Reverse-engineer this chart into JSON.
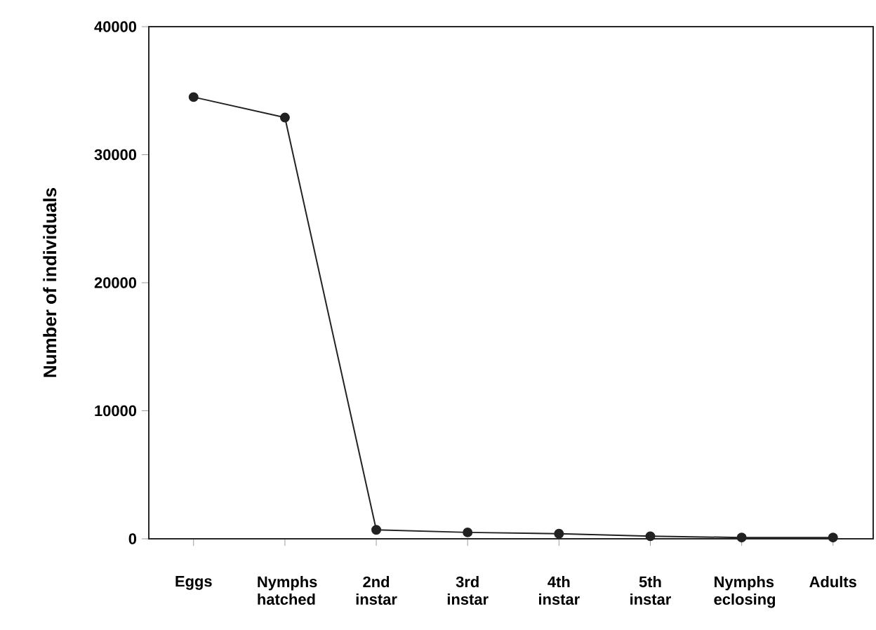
{
  "chart_data": {
    "type": "line",
    "ylabel": "Number of individuals",
    "categories": [
      "Eggs",
      "Nymphs hatched",
      "2nd instar",
      "3rd instar",
      "4th instar",
      "5th instar",
      "Nymphs eclosing",
      "Adults"
    ],
    "series": [
      {
        "color": "#222222",
        "values": [
          34500,
          32900,
          700,
          500,
          400,
          200,
          100,
          100
        ]
      }
    ],
    "ylim": [
      0,
      40000
    ],
    "yticks": [
      0,
      10000,
      20000,
      30000,
      40000
    ],
    "marker": "circle",
    "line_style": "solid"
  }
}
